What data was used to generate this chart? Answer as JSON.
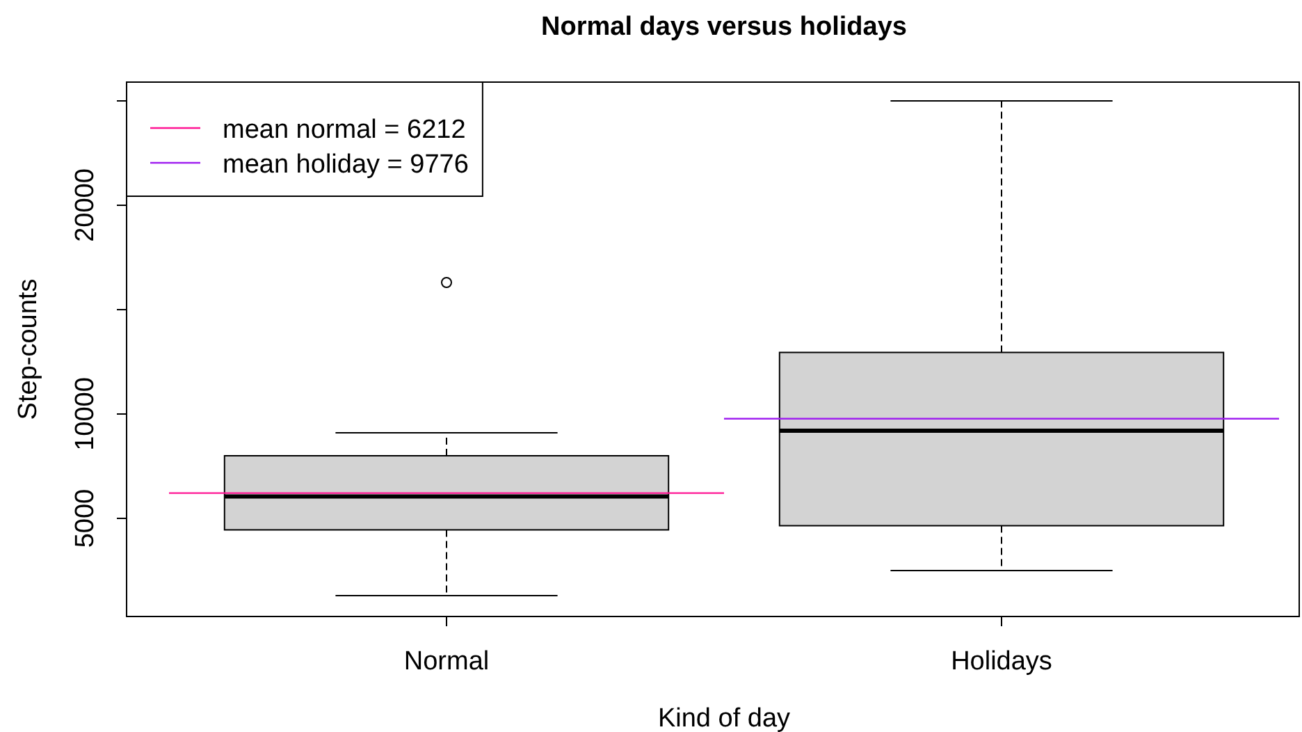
{
  "chart_data": {
    "type": "box",
    "title": "Normal days versus holidays",
    "xlabel": "Kind of day",
    "ylabel": "Step-counts",
    "categories": [
      "Normal",
      "Holidays"
    ],
    "series": [
      {
        "color": "#d3d3d3",
        "boxes": [
          {
            "low": 1300,
            "q1": 4450,
            "median": 6050,
            "q3": 8000,
            "high": 9100,
            "outliers": [
              16300
            ]
          },
          {
            "low": 2500,
            "q1": 4650,
            "median": 9200,
            "q3": 12950,
            "high": 25000
          }
        ]
      }
    ],
    "ref_lines": [
      {
        "axis": "y",
        "value": 6212,
        "label": "mean normal = 6212",
        "color": "#ff1493"
      },
      {
        "axis": "y",
        "value": 9776,
        "label": "mean holiday = 9776",
        "color": "#a020f0"
      }
    ],
    "ylim": [
      300,
      25900
    ],
    "yticks": [
      5000,
      10000,
      {
        "value": 15000,
        "label": null
      },
      20000,
      {
        "value": 25000,
        "label": null
      }
    ],
    "legend": "top left"
  }
}
